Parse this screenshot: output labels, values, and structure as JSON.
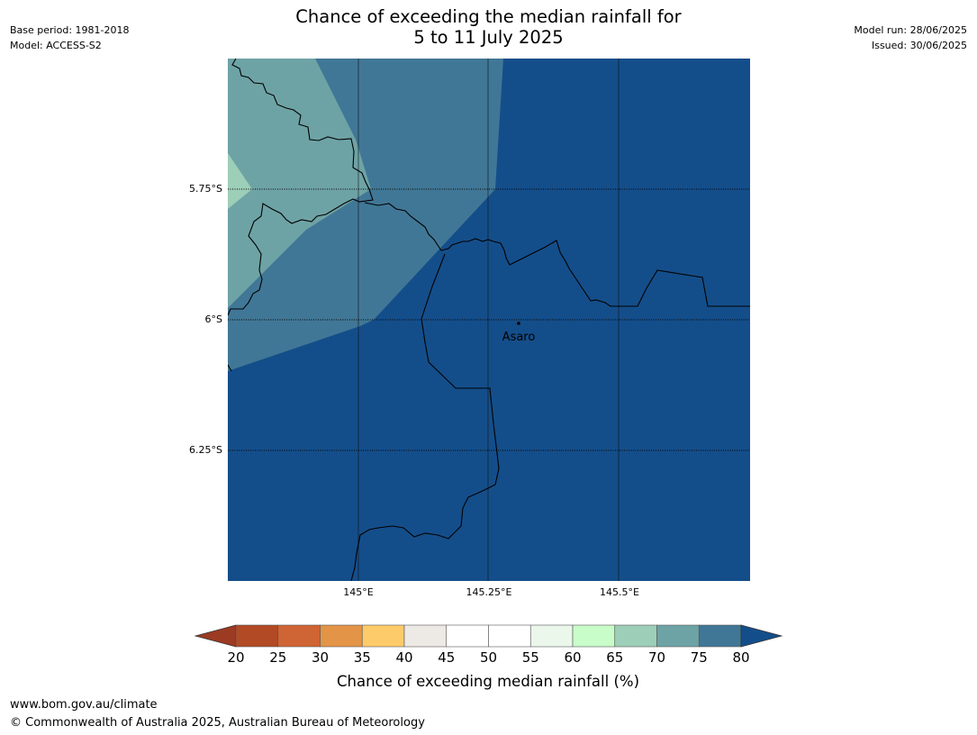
{
  "title": {
    "line1": "Chance of exceeding the median rainfall for",
    "line2": "5 to 11 July 2025"
  },
  "meta_left": {
    "base_period": "Base period: 1981-2018",
    "model": "Model: ACCESS-S2"
  },
  "meta_right": {
    "model_run": "Model run: 28/06/2025",
    "issued": "Issued: 30/06/2025"
  },
  "map": {
    "lat_labels": [
      "5.75°S",
      "6°S",
      "6.25°S"
    ],
    "lon_labels": [
      "145°E",
      "145.25°E",
      "145.5°E"
    ],
    "place_label": "Asaro"
  },
  "colorbar": {
    "ticks": [
      "20",
      "25",
      "30",
      "35",
      "40",
      "45",
      "50",
      "55",
      "60",
      "65",
      "70",
      "75",
      "80"
    ],
    "label": "Chance of exceeding median rainfall (%)",
    "under_color": "#9c3a22",
    "over_color": "#144e8a",
    "colors": [
      "#b24a25",
      "#cf6434",
      "#e39447",
      "#fecb6b",
      "#ede9e4",
      "#ffffff",
      "#ffffff",
      "#ebf7ea",
      "#c8fdca",
      "#9dceb8",
      "#6ea3a5",
      "#417796"
    ]
  },
  "footer": {
    "url": "www.bom.gov.au/climate",
    "copyright": "© Commonwealth of Australia 2025, Australian Bureau of Meteorology"
  }
}
